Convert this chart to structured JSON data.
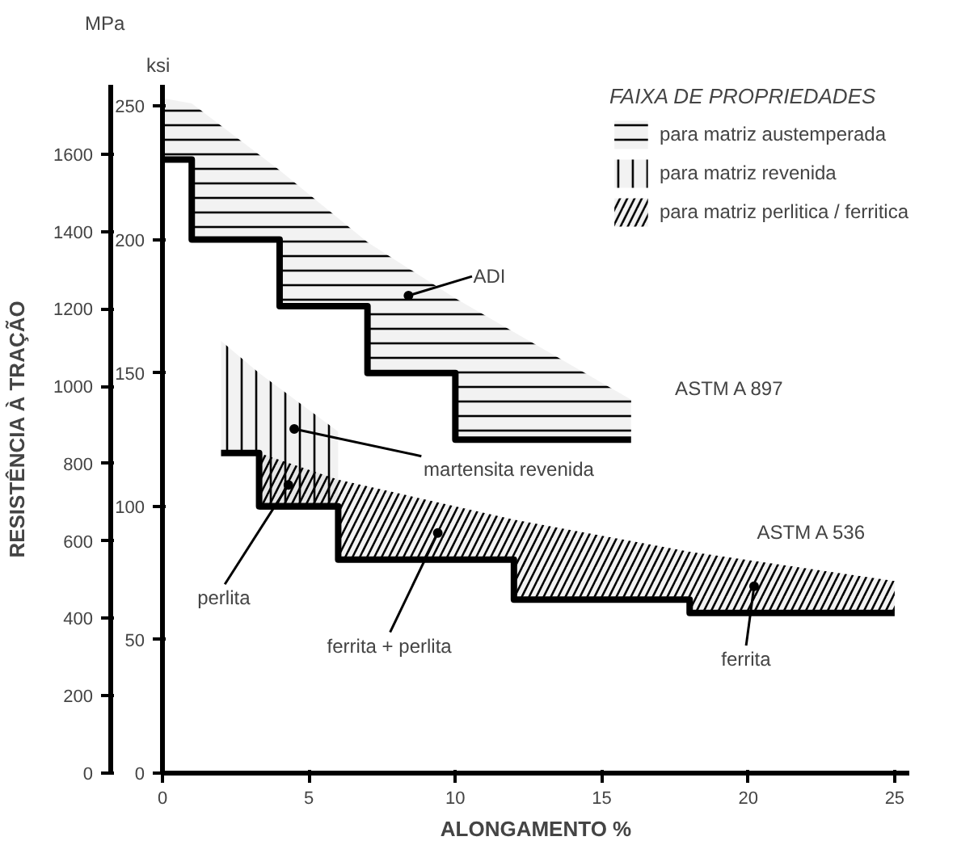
{
  "chart_data": {
    "type": "line",
    "xlabel": "ALONGAMENTO %",
    "ylabel": "ksi",
    "y2label": "RESISTÊNCIA À TRAÇÃO",
    "legend_title": "FAIXA DE PROPRIEDADES",
    "legend": "top right",
    "grid": false,
    "xlim": [
      0,
      25.5
    ],
    "xticks": [
      0,
      5,
      10,
      15,
      20,
      25
    ],
    "ylim": [
      0,
      258
    ],
    "yticks": [
      0,
      50,
      100,
      150,
      200,
      250
    ],
    "y2lim": [
      0,
      1779
    ],
    "y2ticks": [
      0,
      200,
      400,
      600,
      800,
      1000,
      1200,
      1400,
      1600
    ],
    "series": [
      {
        "name": "para matriz austemperada",
        "color": "#000000",
        "x": [
          0,
          1,
          1,
          4,
          4,
          7,
          7,
          10,
          10,
          16
        ],
        "values": [
          230,
          230,
          200,
          200,
          175,
          175,
          150,
          150,
          125,
          125
        ],
        "lower": [
          230,
          230,
          200,
          200,
          175,
          175,
          150,
          150,
          125,
          125
        ],
        "upper": [
          253,
          251,
          251,
          226,
          226,
          199,
          199,
          178,
          178,
          140
        ]
      },
      {
        "name": "para matriz revenida",
        "color": "#000000",
        "x": [
          2,
          3.3,
          3.3,
          6
        ],
        "values": [
          120,
          120,
          100,
          100
        ],
        "lower": [
          120,
          120,
          100,
          100
        ],
        "upper": [
          162,
          150,
          150,
          128
        ]
      },
      {
        "name": "para matriz perlitica / ferritica",
        "color": "#000000",
        "x": [
          3.3,
          6,
          6,
          12,
          12,
          18,
          18,
          25
        ],
        "values": [
          100,
          100,
          80,
          80,
          65,
          65,
          60,
          60
        ],
        "lower": [
          100,
          100,
          80,
          80,
          65,
          65,
          60,
          60
        ],
        "upper": [
          120,
          110,
          110,
          95,
          95,
          83,
          83,
          72
        ]
      }
    ],
    "annotations": [
      "MPa",
      "ASTM A 897",
      "ASTM A 536",
      {
        "text": "ADI",
        "x": 8.4,
        "y": 179
      },
      {
        "text": "martensita revenida",
        "x": 4.5,
        "y": 129
      },
      {
        "text": "perlita",
        "x": 4.3,
        "y": 108
      },
      {
        "text": "ferrita + perlita",
        "x": 9.4,
        "y": 90
      },
      {
        "text": "ferrita",
        "x": 20.2,
        "y": 70
      }
    ]
  }
}
